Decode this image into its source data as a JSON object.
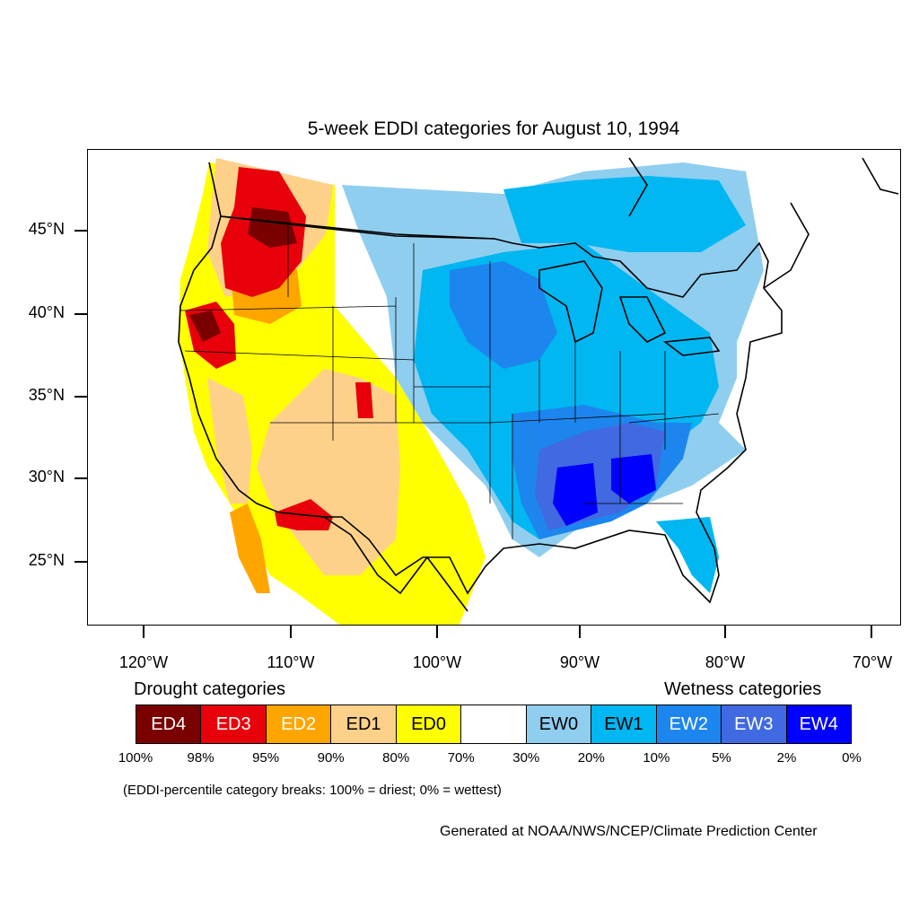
{
  "title": "5-week EDDI categories for August 10, 1994",
  "axes": {
    "lat_labels": [
      "45°N",
      "40°N",
      "35°N",
      "30°N",
      "25°N"
    ],
    "lon_labels": [
      "120°W",
      "110°W",
      "100°W",
      "90°W",
      "80°W",
      "70°W"
    ]
  },
  "legend": {
    "drought_heading": "Drought categories",
    "wetness_heading": "Wetness categories",
    "categories": [
      {
        "label": "ED4",
        "color": "#7a0000",
        "text_color": "#ffffff"
      },
      {
        "label": "ED3",
        "color": "#e8000b",
        "text_color": "#ffffff"
      },
      {
        "label": "ED2",
        "color": "#ffa500",
        "text_color": "#ffffff"
      },
      {
        "label": "ED1",
        "color": "#fed18a",
        "text_color": "#000000"
      },
      {
        "label": "ED0",
        "color": "#ffff00",
        "text_color": "#000000"
      },
      {
        "label": "",
        "color": "#ffffff",
        "text_color": "#000000"
      },
      {
        "label": "EW0",
        "color": "#8fceef",
        "text_color": "#000000"
      },
      {
        "label": "EW1",
        "color": "#00b7f2",
        "text_color": "#000000"
      },
      {
        "label": "EW2",
        "color": "#1c86ee",
        "text_color": "#ffffff"
      },
      {
        "label": "EW3",
        "color": "#4169e1",
        "text_color": "#ffffff"
      },
      {
        "label": "EW4",
        "color": "#0000ff",
        "text_color": "#ffffff"
      }
    ],
    "breaks": [
      "100%",
      "98%",
      "95%",
      "90%",
      "80%",
      "70%",
      "30%",
      "20%",
      "10%",
      "5%",
      "2%",
      "0%"
    ]
  },
  "note": "(EDDI-percentile category breaks: 100% = driest; 0% = wettest)",
  "credit": "Generated at NOAA/NWS/NCEP/Climate Prediction Center"
}
